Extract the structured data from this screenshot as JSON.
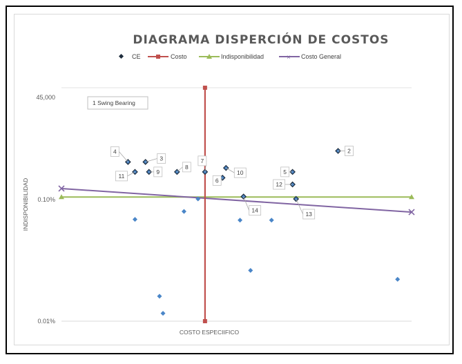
{
  "chart_data": {
    "type": "scatter",
    "title": "DIAGRAMA DISPERCIÓN DE COSTOS",
    "xlabel": "COSTO ESPECIIFICO",
    "ylabel": "INDISPONIBILIDAD",
    "y_scale": "log",
    "ylim": [
      0.0001,
      0.01
    ],
    "y_ticks": [
      "45,000",
      "0.10%",
      "0.01%"
    ],
    "legend": [
      "CE",
      "Costo",
      "Indisponibilidad",
      "Costo General"
    ],
    "callout": "1 Swing Bearing",
    "colors": {
      "ce": "#4a86c8",
      "ce_outline": "#1f2d3d",
      "costo": "#c0504d",
      "indisp": "#9bbb59",
      "general": "#8064a2"
    },
    "series": [
      {
        "name": "CE",
        "labeled_points": [
          {
            "label": "2",
            "x": 0.79,
            "y": 0.0027
          },
          {
            "label": "3",
            "x": 0.24,
            "y": 0.00215
          },
          {
            "label": "4",
            "x": 0.19,
            "y": 0.00215
          },
          {
            "label": "5",
            "x": 0.66,
            "y": 0.00175
          },
          {
            "label": "6",
            "x": 0.46,
            "y": 0.00155
          },
          {
            "label": "7",
            "x": 0.41,
            "y": 0.00175
          },
          {
            "label": "8",
            "x": 0.33,
            "y": 0.00175
          },
          {
            "label": "9",
            "x": 0.25,
            "y": 0.00175
          },
          {
            "label": "10",
            "x": 0.47,
            "y": 0.0019
          },
          {
            "label": "11",
            "x": 0.21,
            "y": 0.00175
          },
          {
            "label": "12",
            "x": 0.66,
            "y": 0.00135
          },
          {
            "label": "13",
            "x": 0.67,
            "y": 0.001
          },
          {
            "label": "14",
            "x": 0.52,
            "y": 0.00105
          }
        ],
        "plain_points": [
          {
            "x": 0.21,
            "y": 0.00068
          },
          {
            "x": 0.35,
            "y": 0.00079
          },
          {
            "x": 0.39,
            "y": 0.001
          },
          {
            "x": 0.51,
            "y": 0.00067
          },
          {
            "x": 0.6,
            "y": 0.00067
          },
          {
            "x": 0.54,
            "y": 0.00026
          },
          {
            "x": 0.28,
            "y": 0.00016
          },
          {
            "x": 0.29,
            "y": 0.000116
          },
          {
            "x": 0.96,
            "y": 0.00022
          }
        ]
      },
      {
        "name": "Costo",
        "x": [
          0.41,
          0.41
        ],
        "y": [
          0.01,
          0.0001
        ]
      },
      {
        "name": "Indisponibilidad",
        "x": [
          0.0,
          1.0
        ],
        "y": [
          0.00104,
          0.00104
        ]
      },
      {
        "name": "Costo General",
        "x": [
          0.0,
          1.0
        ],
        "y": [
          0.00124,
          0.00078
        ]
      }
    ],
    "xlim": [
      0,
      1
    ]
  }
}
